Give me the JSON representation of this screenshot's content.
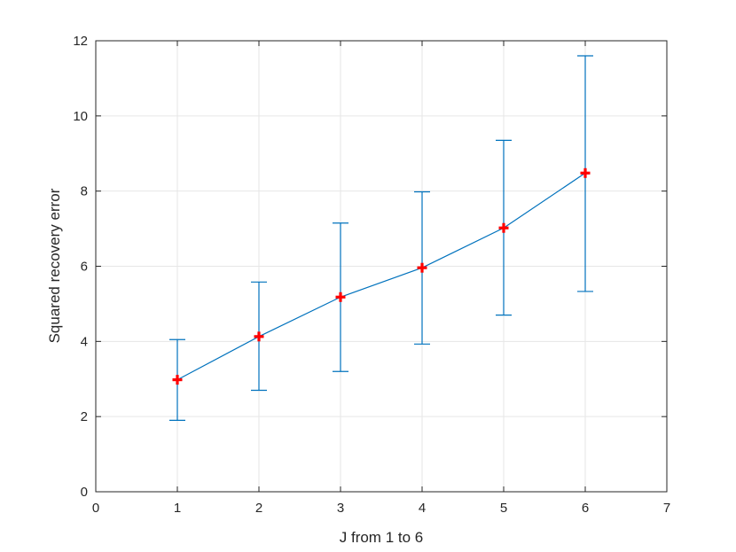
{
  "chart_data": {
    "type": "line",
    "xlabel": "J from 1 to 6",
    "ylabel": "Squared recovery error",
    "xlim": [
      0,
      7
    ],
    "ylim": [
      0,
      12
    ],
    "x_ticks": [
      "0",
      "1",
      "2",
      "3",
      "4",
      "5",
      "6",
      "7"
    ],
    "y_ticks": [
      "0",
      "2",
      "4",
      "6",
      "8",
      "10",
      "12"
    ],
    "grid": true,
    "series": [
      {
        "x": [
          1,
          2,
          3,
          4,
          5,
          6
        ],
        "y": [
          2.98,
          4.13,
          5.18,
          5.96,
          7.02,
          8.48
        ],
        "err_low": [
          1.9,
          2.7,
          3.2,
          3.93,
          4.7,
          5.33
        ],
        "err_high": [
          4.05,
          5.58,
          7.15,
          7.98,
          9.35,
          11.6
        ],
        "line_color": "#0072BD",
        "marker": "plus",
        "marker_color": "#FF0000"
      }
    ]
  }
}
